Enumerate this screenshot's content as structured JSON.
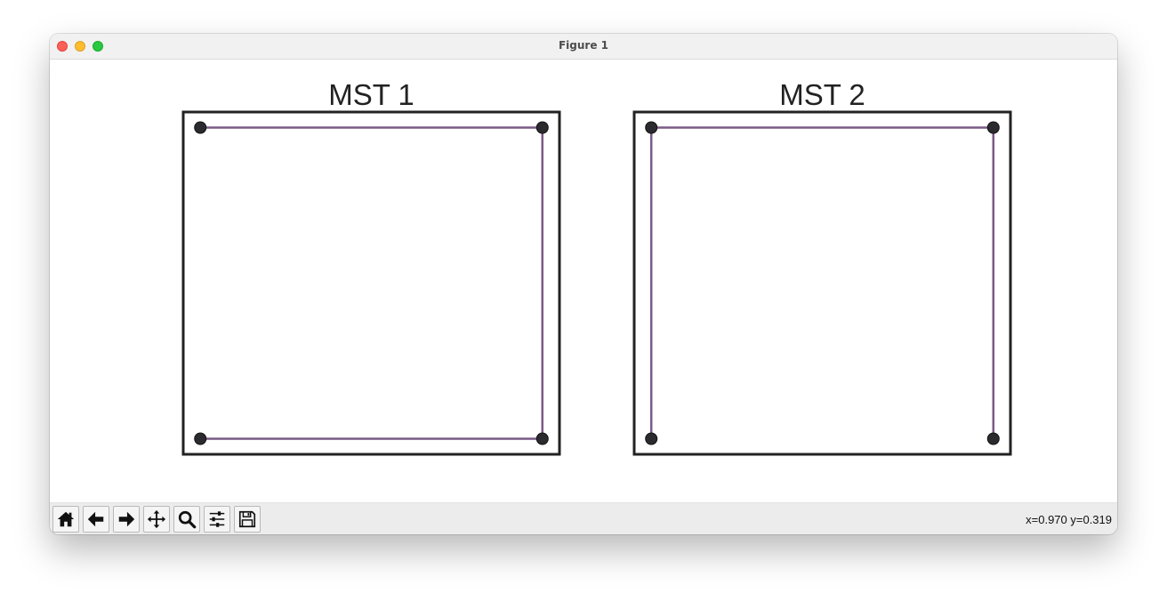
{
  "window": {
    "title": "Figure 1"
  },
  "colors": {
    "edge": "#7a5a86",
    "node": "#2b2b2f",
    "frame": "#222222"
  },
  "toolbar": {
    "buttons": [
      {
        "name": "home",
        "icon": "home-icon"
      },
      {
        "name": "back",
        "icon": "arrow-left-icon"
      },
      {
        "name": "forward",
        "icon": "arrow-right-icon"
      },
      {
        "name": "pan",
        "icon": "move-icon"
      },
      {
        "name": "zoom",
        "icon": "magnifier-icon"
      },
      {
        "name": "configure-subplots",
        "icon": "sliders-icon"
      },
      {
        "name": "save",
        "icon": "floppy-disk-icon"
      }
    ],
    "coords": "x=0.970 y=0.319"
  },
  "chart_data": [
    {
      "type": "scatter",
      "title": "MST 1",
      "xlim": [
        -0.05,
        1.05
      ],
      "ylim": [
        -0.05,
        1.05
      ],
      "grid": false,
      "nodes": [
        [
          0,
          0
        ],
        [
          1,
          0
        ],
        [
          0,
          1
        ],
        [
          1,
          1
        ]
      ],
      "edges": [
        [
          [
            0,
            1
          ],
          [
            1,
            1
          ]
        ],
        [
          [
            1,
            1
          ],
          [
            1,
            0
          ]
        ],
        [
          [
            1,
            0
          ],
          [
            0,
            0
          ]
        ]
      ]
    },
    {
      "type": "scatter",
      "title": "MST 2",
      "xlim": [
        -0.05,
        1.05
      ],
      "ylim": [
        -0.05,
        1.05
      ],
      "grid": false,
      "nodes": [
        [
          0,
          0
        ],
        [
          1,
          0
        ],
        [
          0,
          1
        ],
        [
          1,
          1
        ]
      ],
      "edges": [
        [
          [
            0,
            0
          ],
          [
            0,
            1
          ]
        ],
        [
          [
            0,
            1
          ],
          [
            1,
            1
          ]
        ],
        [
          [
            1,
            1
          ],
          [
            1,
            0
          ]
        ]
      ]
    }
  ]
}
